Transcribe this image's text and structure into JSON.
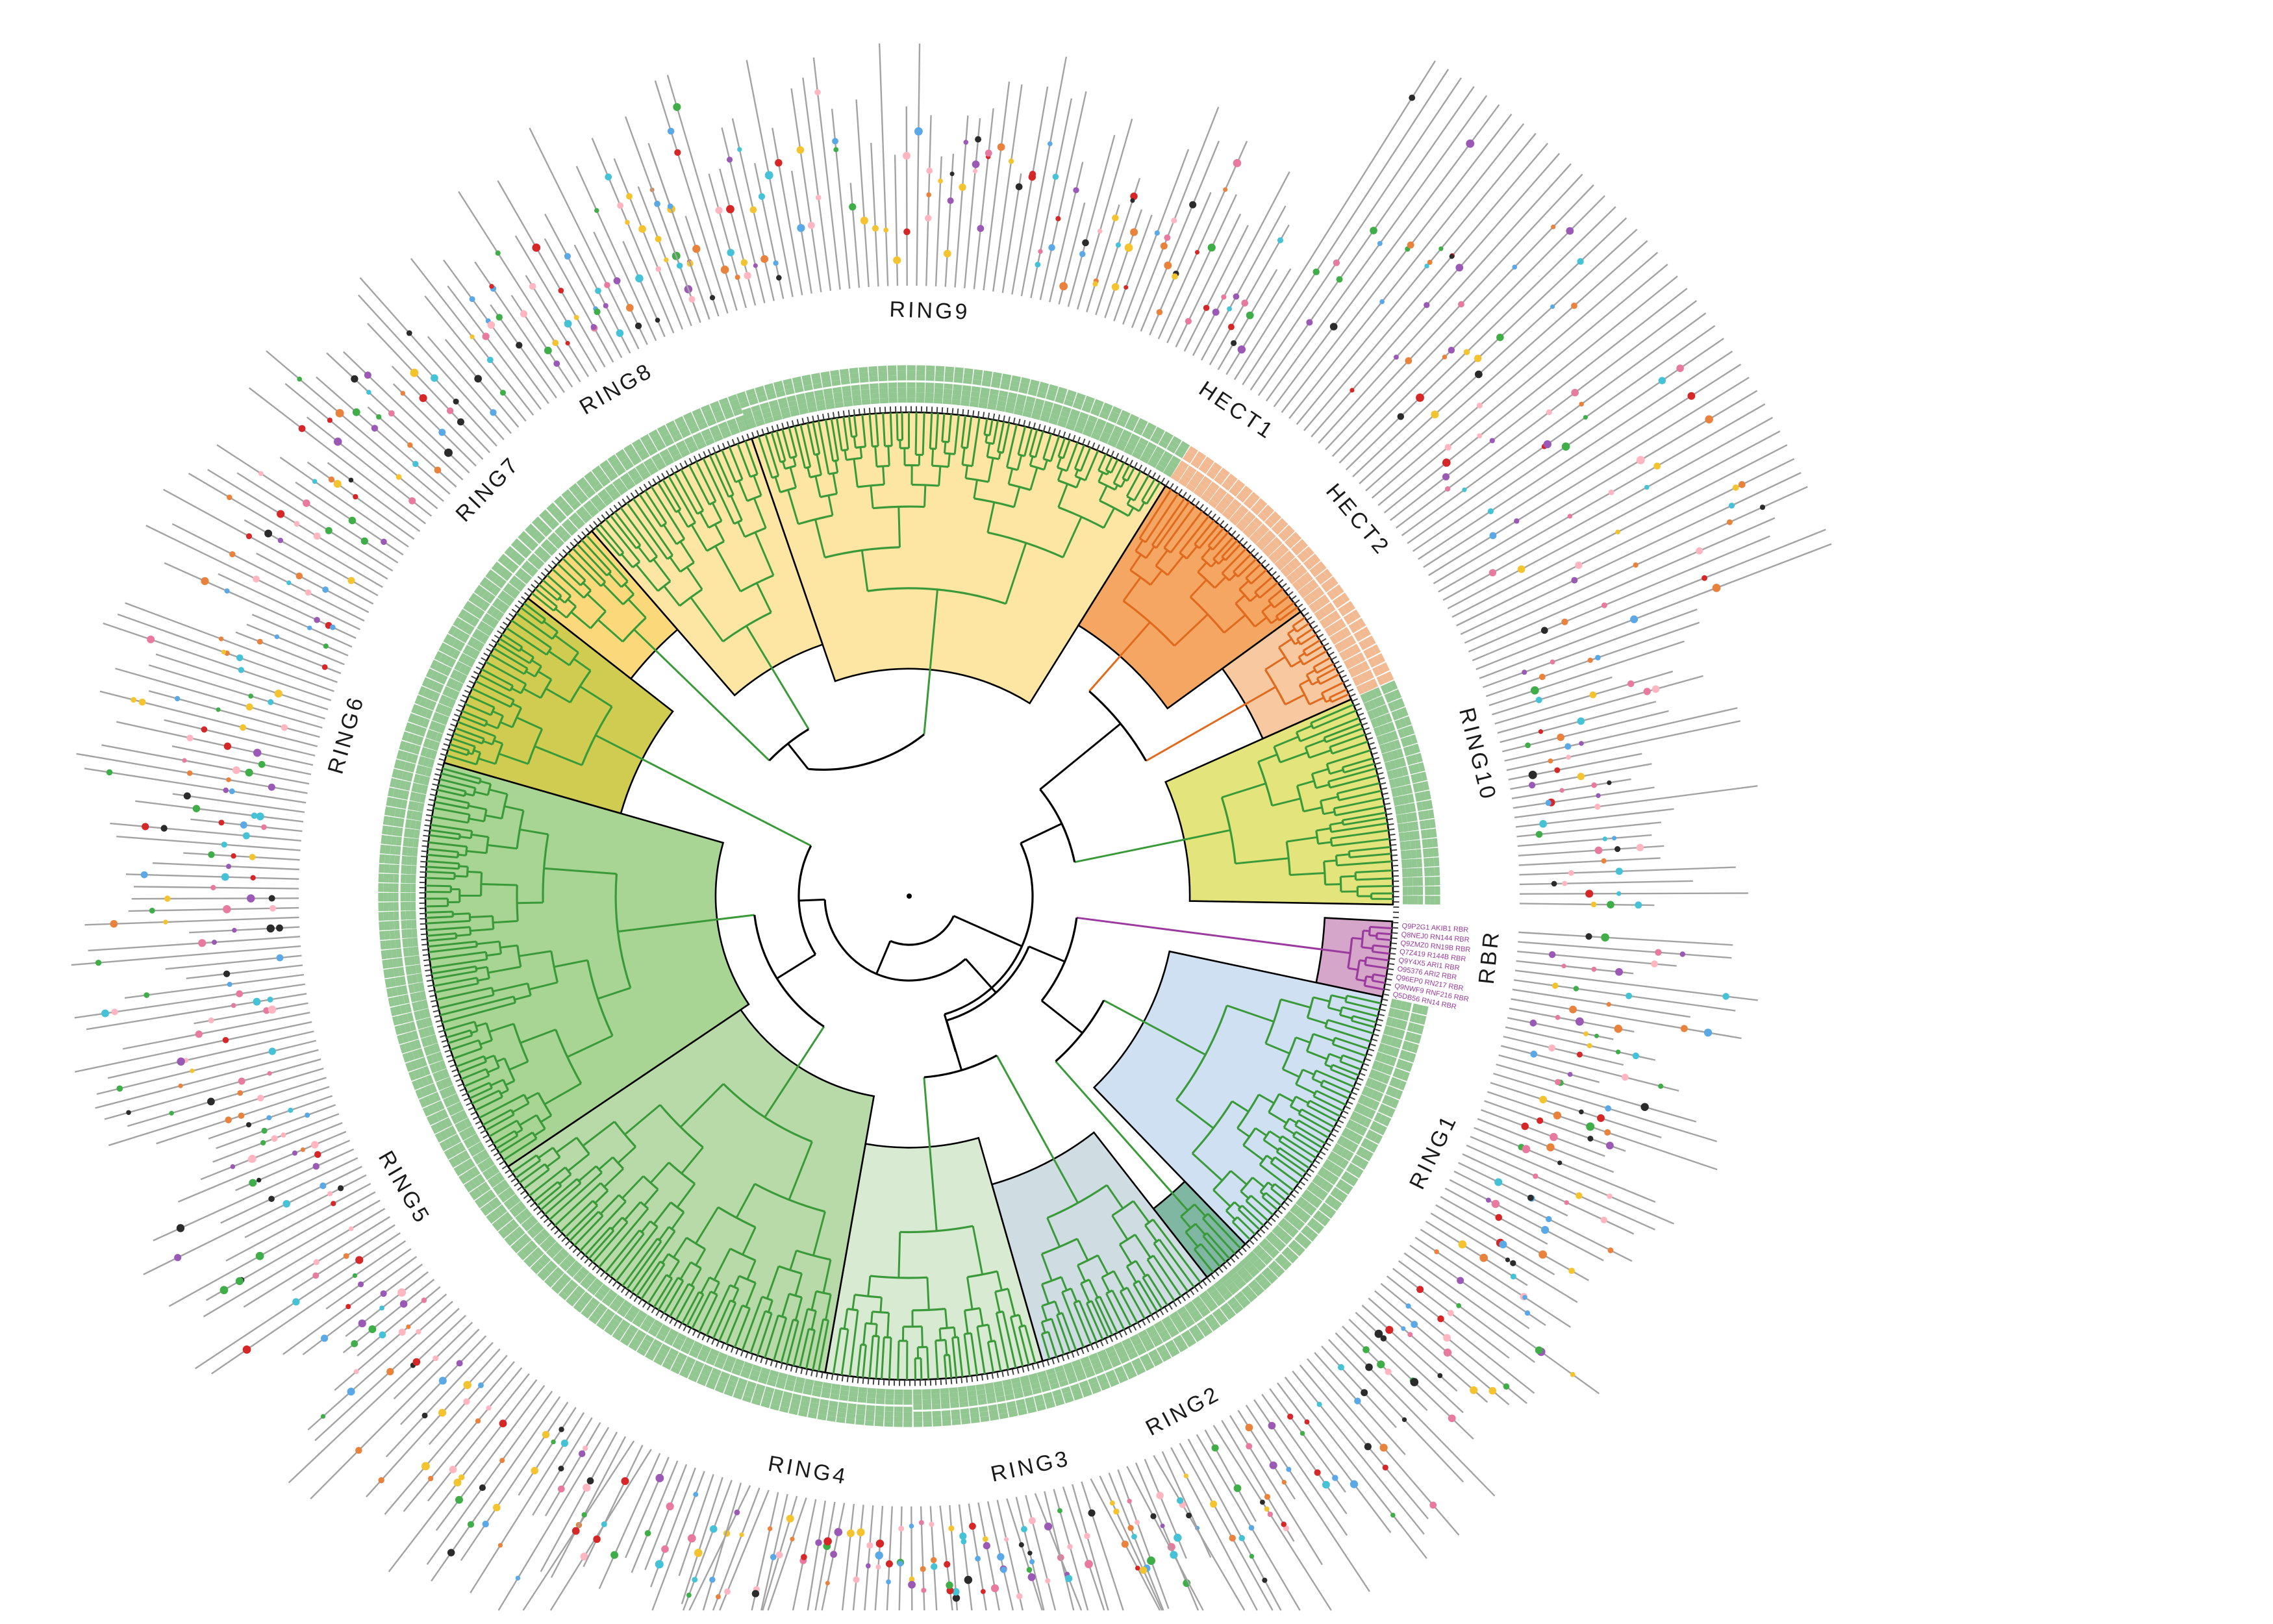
{
  "diagram": {
    "type": "circular-phylogenetic-tree",
    "colors": {
      "ring_branch": "#3a9a3a",
      "hect_branch": "#e06a1e",
      "rbr_branch": "#9a3a9e",
      "backbone": "#000000",
      "spoke": "#a3a3a3"
    },
    "clades": [
      {
        "id": "ring9",
        "label": "RING9",
        "color": "#fde5a3",
        "leaf_color": "#3a9a3a"
      },
      {
        "id": "hect1",
        "label": "HECT1",
        "color": "#f5a662",
        "leaf_color": "#e8823c"
      },
      {
        "id": "hect2",
        "label": "HECT2",
        "color": "#f8c9a0",
        "leaf_color": "#e8823c"
      },
      {
        "id": "ring10",
        "label": "RING10",
        "color": "#e3e57c",
        "leaf_color": "#3a9a3a"
      },
      {
        "id": "rbr",
        "label": "RBR",
        "color": "#d5a6c9",
        "leaf_color": "#9a3a9e"
      },
      {
        "id": "ring1",
        "label": "RING1",
        "color": "#cfe0f2",
        "leaf_color": "#3a9a3a"
      },
      {
        "id": "ring1b",
        "label": "",
        "color": "#7fb7a3",
        "leaf_color": "#3a9a3a"
      },
      {
        "id": "ring2",
        "label": "RING2",
        "color": "#cfdde3",
        "leaf_color": "#3a9a3a"
      },
      {
        "id": "ring3",
        "label": "RING3",
        "color": "#d9ead2",
        "leaf_color": "#3a9a3a"
      },
      {
        "id": "ring4",
        "label": "RING4",
        "color": "#b8d9a8",
        "leaf_color": "#3a9a3a"
      },
      {
        "id": "ring5",
        "label": "RING5",
        "color": "#a8d494",
        "leaf_color": "#3a9a3a"
      },
      {
        "id": "ring6",
        "label": "RING6",
        "color": "#d0cc52",
        "leaf_color": "#3a9a3a"
      },
      {
        "id": "ring7",
        "label": "RING7",
        "color": "#fbd97a",
        "leaf_color": "#3a9a3a"
      },
      {
        "id": "ring8",
        "label": "RING8",
        "color": "#fde5a3",
        "leaf_color": "#3a9a3a"
      }
    ],
    "rbr_leaves": [
      "Q9P2G1 AKIB1 RBR",
      "Q8NEJ0 RN144 RBR",
      "Q9ZMZ0 RN19B RBR",
      "Q7Z419 R144B RBR",
      "Q9Y4X5 ARI1 RBR",
      "O95376 ARI2 RBR",
      "Q96EP0 RN217 RBR",
      "Q9NWF9 RNF216 RBR",
      "Q5DB56 RN14 RBR",
      "Q96D90 PRKN RBR",
      "Q9BYM8 HOIL1 RBR"
    ],
    "domain_colors": [
      "#e8823c",
      "#f4c430",
      "#5aa9e6",
      "#e87aa0",
      "#9b59b6",
      "#3fae49",
      "#2b2b2b",
      "#ffb6c1",
      "#46c2d6",
      "#d62728"
    ]
  }
}
